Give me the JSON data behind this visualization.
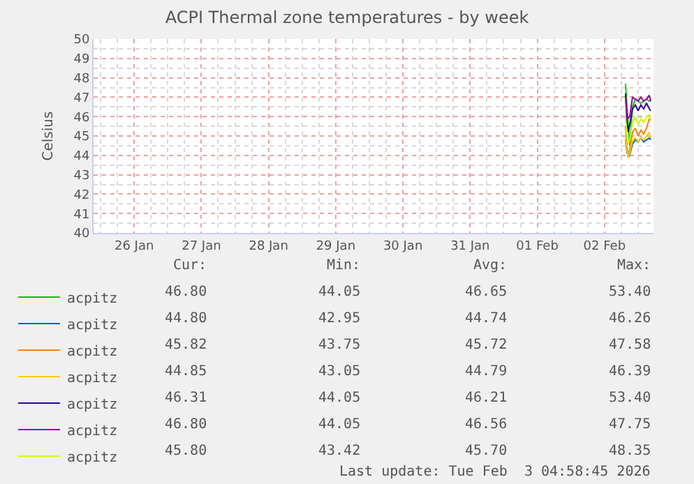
{
  "chart_data": {
    "type": "line",
    "title": "ACPI Thermal zone temperatures - by week",
    "ylabel": "Celsius",
    "x": [
      "2026-02-02T19:30",
      "2026-02-02T20:00",
      "2026-02-02T20:30",
      "2026-02-02T21:00",
      "2026-02-02T22:00",
      "2026-02-02T23:00",
      "2026-02-03T00:00",
      "2026-02-03T01:00",
      "2026-02-03T02:00",
      "2026-02-03T03:00",
      "2026-02-03T04:00",
      "2026-02-03T04:30"
    ],
    "series": [
      {
        "name": "acpitz",
        "color": "#00cc00",
        "values": [
          47.7,
          46.6,
          45.5,
          44.5,
          46.5,
          46.9,
          46.8,
          46.7,
          46.8,
          46.9,
          46.8,
          46.8
        ]
      },
      {
        "name": "acpitz",
        "color": "#0066b3",
        "values": [
          44.8,
          44.2,
          43.9,
          44.0,
          44.6,
          44.8,
          44.7,
          44.9,
          44.7,
          44.8,
          44.9,
          44.8
        ]
      },
      {
        "name": "acpitz",
        "color": "#ff8000",
        "values": [
          45.5,
          44.5,
          44.0,
          44.3,
          45.2,
          45.4,
          45.0,
          45.3,
          45.1,
          45.4,
          45.9,
          45.8
        ]
      },
      {
        "name": "acpitz",
        "color": "#ffcc00",
        "values": [
          44.9,
          44.3,
          43.9,
          44.1,
          44.8,
          44.9,
          44.7,
          44.9,
          44.8,
          45.0,
          45.2,
          44.9
        ]
      },
      {
        "name": "acpitz",
        "color": "#330099",
        "values": [
          47.2,
          45.8,
          45.2,
          45.6,
          46.4,
          46.6,
          46.3,
          46.6,
          46.4,
          46.7,
          46.4,
          46.3
        ]
      },
      {
        "name": "acpitz",
        "color": "#990099",
        "values": [
          47.0,
          46.2,
          45.9,
          46.0,
          47.0,
          46.9,
          46.8,
          47.0,
          46.8,
          46.9,
          47.1,
          46.8
        ]
      },
      {
        "name": "acpitz",
        "color": "#ccff00",
        "values": [
          46.0,
          45.0,
          44.6,
          44.8,
          45.7,
          46.0,
          45.6,
          45.9,
          45.7,
          46.0,
          46.1,
          45.8
        ]
      }
    ],
    "xlim": [
      "2026-01-25T21:30",
      "2026-02-03T05:30"
    ],
    "xticks": [
      {
        "value": "2026-01-26T12:00",
        "label": "26 Jan"
      },
      {
        "value": "2026-01-27T12:00",
        "label": "27 Jan"
      },
      {
        "value": "2026-01-28T12:00",
        "label": "28 Jan"
      },
      {
        "value": "2026-01-29T12:00",
        "label": "29 Jan"
      },
      {
        "value": "2026-01-30T12:00",
        "label": "30 Jan"
      },
      {
        "value": "2026-01-31T12:00",
        "label": "31 Jan"
      },
      {
        "value": "2026-02-01T12:00",
        "label": "01 Feb"
      },
      {
        "value": "2026-02-02T12:00",
        "label": "02 Feb"
      }
    ],
    "ylim": [
      40,
      50
    ],
    "yticks": [
      40,
      41,
      42,
      43,
      44,
      45,
      46,
      47,
      48,
      49,
      50
    ],
    "grid": true,
    "legend": "bottom",
    "marker": "none",
    "line_style": "solid",
    "annotations": [
      "Cur:",
      "Min:",
      "Avg:",
      "Max:",
      "46.80",
      "44.05",
      "46.65",
      "53.40",
      "44.80",
      "42.95",
      "44.74",
      "46.26",
      "45.82",
      "43.75",
      "45.72",
      "47.58",
      "44.85",
      "43.05",
      "44.79",
      "46.39",
      "46.31",
      "44.05",
      "46.21",
      "53.40",
      "46.80",
      "44.05",
      "46.56",
      "47.75",
      "45.80",
      "43.42",
      "45.70",
      "48.35",
      "Last update: Tue Feb  3 04:58:45 2026"
    ]
  }
}
